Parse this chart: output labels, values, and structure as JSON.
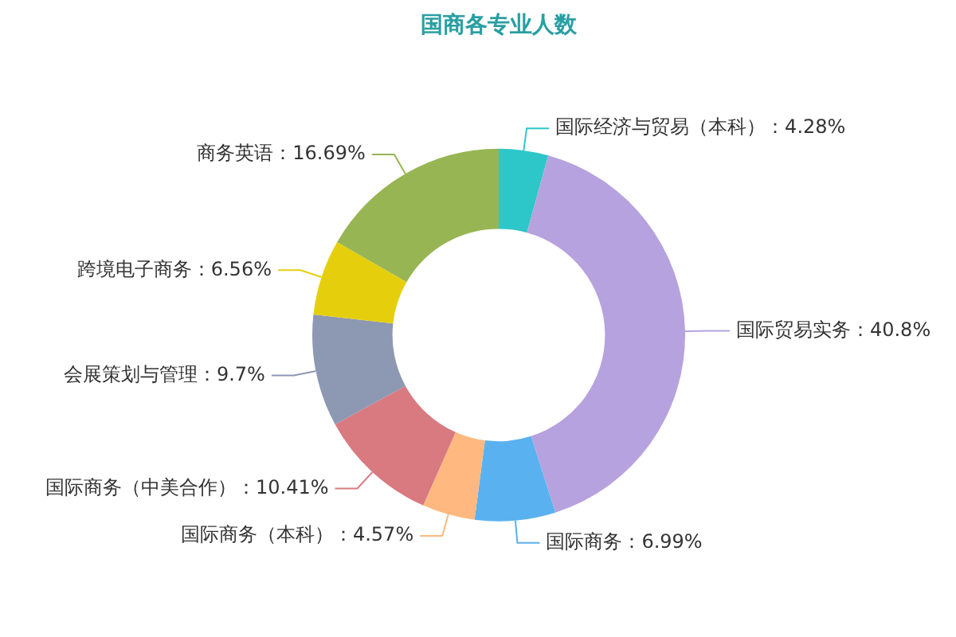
{
  "chart_data": {
    "type": "donut",
    "title": "国商各专业人数",
    "categories": [
      "国际经济与贸易（本科）",
      "国际贸易实务",
      "国际商务",
      "国际商务（本科）",
      "国际商务（中美合作）",
      "会展策划与管理",
      "跨境电子商务",
      "商务英语"
    ],
    "values": [
      4.28,
      40.8,
      6.99,
      4.57,
      10.41,
      9.7,
      6.56,
      16.69
    ],
    "value_labels": [
      "4.28%",
      "40.8%",
      "6.99%",
      "4.57%",
      "10.41%",
      "9.7%",
      "6.56%",
      "16.69%"
    ],
    "colors": [
      "#2ec7c9",
      "#b6a2de",
      "#5ab1ef",
      "#ffb980",
      "#d87a80",
      "#8d98b3",
      "#e5cf0d",
      "#97b552"
    ],
    "legend": false
  }
}
